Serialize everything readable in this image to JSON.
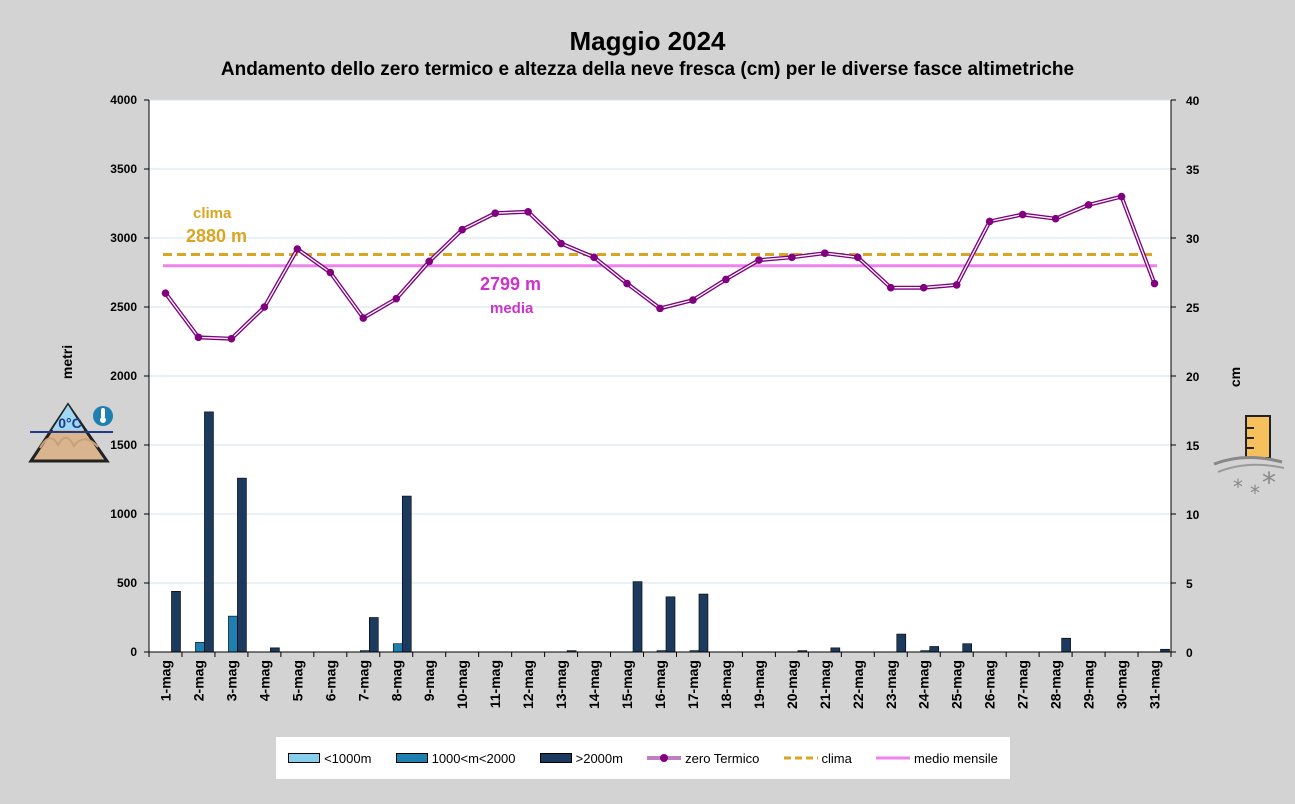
{
  "chart_data": {
    "type": "bar",
    "title": "Maggio 2024",
    "subtitle": "Andamento dello zero termico e altezza della neve fresca (cm) per le diverse fasce altimetriche",
    "ylabel_left": "metri",
    "ylabel_right": "cm",
    "ylim_left": [
      0,
      4000
    ],
    "ylim_right": [
      0,
      40
    ],
    "yticks_left": [
      0,
      500,
      1000,
      1500,
      2000,
      2500,
      3000,
      3500,
      4000
    ],
    "yticks_right": [
      0,
      5,
      10,
      15,
      20,
      25,
      30,
      35,
      40
    ],
    "grid": true,
    "legend_position": "bottom",
    "categories": [
      "1-mag",
      "2-mag",
      "3-mag",
      "4-mag",
      "5-mag",
      "6-mag",
      "7-mag",
      "8-mag",
      "9-mag",
      "10-mag",
      "11-mag",
      "12-mag",
      "13-mag",
      "14-mag",
      "15-mag",
      "16-mag",
      "17-mag",
      "18-mag",
      "19-mag",
      "20-mag",
      "21-mag",
      "22-mag",
      "23-mag",
      "24-mag",
      "25-mag",
      "26-mag",
      "27-mag",
      "28-mag",
      "29-mag",
      "30-mag",
      "31-mag"
    ],
    "bar_series": [
      {
        "name": "<1000m",
        "color": "#87ceeb",
        "axis": "right",
        "values": [
          0,
          0,
          0,
          0,
          0,
          0,
          0,
          0,
          0,
          0,
          0,
          0,
          0,
          0,
          0,
          0,
          0,
          0,
          0,
          0,
          0,
          0,
          0,
          0,
          0,
          0,
          0,
          0,
          0,
          0,
          0
        ]
      },
      {
        "name": "1000<m<2000",
        "color": "#1f7fb0",
        "axis": "right",
        "values": [
          0,
          0.7,
          2.6,
          0,
          0,
          0,
          0.1,
          0.6,
          0,
          0,
          0,
          0,
          0,
          0,
          0,
          0.1,
          0.1,
          0,
          0,
          0,
          0,
          0,
          0,
          0.1,
          0,
          0,
          0,
          0,
          0,
          0,
          0
        ]
      },
      {
        "name": ">2000m",
        "color": "#1c3a5e",
        "axis": "right",
        "values": [
          4.4,
          17.4,
          12.6,
          0.3,
          0,
          0,
          2.5,
          11.3,
          0,
          0,
          0,
          0,
          0.1,
          0,
          5.1,
          4.0,
          4.2,
          0,
          0,
          0.1,
          0.3,
          0,
          1.3,
          0.4,
          0.6,
          0,
          0,
          1.0,
          0,
          0,
          0.2
        ]
      }
    ],
    "line_series": [
      {
        "name": "zero Termico",
        "color": "#800080",
        "axis": "left",
        "values": [
          2600,
          2280,
          2270,
          2500,
          2920,
          2750,
          2420,
          2560,
          2830,
          3060,
          3180,
          3190,
          2960,
          2860,
          2670,
          2490,
          2550,
          2700,
          2840,
          2860,
          2890,
          2860,
          2640,
          2640,
          2660,
          3120,
          3170,
          3140,
          3240,
          3300,
          2670
        ]
      }
    ],
    "reference_lines": [
      {
        "name": "clima",
        "value": 2880,
        "color": "#daa520",
        "style": "dashed"
      },
      {
        "name": "medio mensile",
        "value": 2799,
        "color": "#ee82ee",
        "style": "solid"
      }
    ],
    "annotations": {
      "clima_label": "clima",
      "clima_value": "2880 m",
      "media_value": "2799 m",
      "media_label": "media"
    }
  },
  "icons": {
    "left": "mountain-freezing-level-icon",
    "left_text": "0°C",
    "right": "snow-gauge-icon"
  },
  "legend": {
    "bar1": "<1000m",
    "bar2": "1000<m<2000",
    "bar3": ">2000m",
    "line1": "zero Termico",
    "line2": "clima",
    "line3": "medio mensile"
  }
}
